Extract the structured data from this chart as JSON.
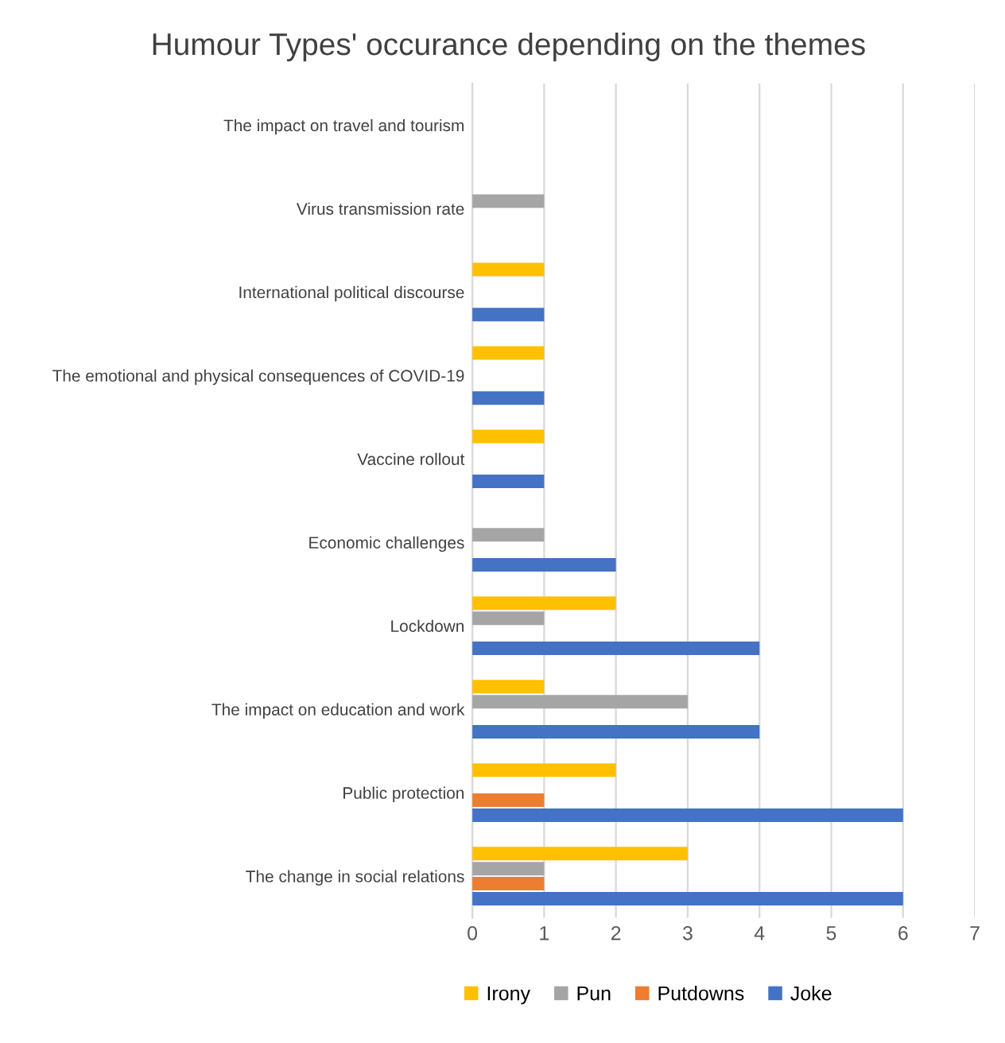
{
  "chart_data": {
    "type": "bar",
    "orientation": "horizontal",
    "title": "Humour Types' occurance depending on the themes",
    "categories": [
      "The impact on travel and tourism",
      "Virus transmission rate",
      "International political discourse",
      "The emotional and physical consequences of COVID-19",
      "Vaccine rollout",
      "Economic challenges",
      "Lockdown",
      "The impact on education and work",
      "Public protection",
      "The change in social relations"
    ],
    "series": [
      {
        "name": "Irony",
        "color": "#ffc000",
        "values": [
          null,
          null,
          1,
          1,
          1,
          null,
          2,
          1,
          2,
          3
        ]
      },
      {
        "name": "Pun",
        "color": "#a5a5a5",
        "values": [
          null,
          1,
          null,
          null,
          null,
          1,
          1,
          3,
          null,
          1
        ]
      },
      {
        "name": "Putdowns",
        "color": "#ed7d31",
        "values": [
          null,
          null,
          null,
          null,
          null,
          null,
          null,
          null,
          1,
          1
        ]
      },
      {
        "name": "Joke",
        "color": "#4472c4",
        "values": [
          null,
          null,
          1,
          1,
          1,
          2,
          4,
          4,
          6,
          6
        ]
      }
    ],
    "xlim": [
      0,
      7
    ],
    "xticks": [
      0,
      1,
      2,
      3,
      4,
      5,
      6,
      7
    ],
    "grid": "x",
    "legend": "bottom"
  }
}
